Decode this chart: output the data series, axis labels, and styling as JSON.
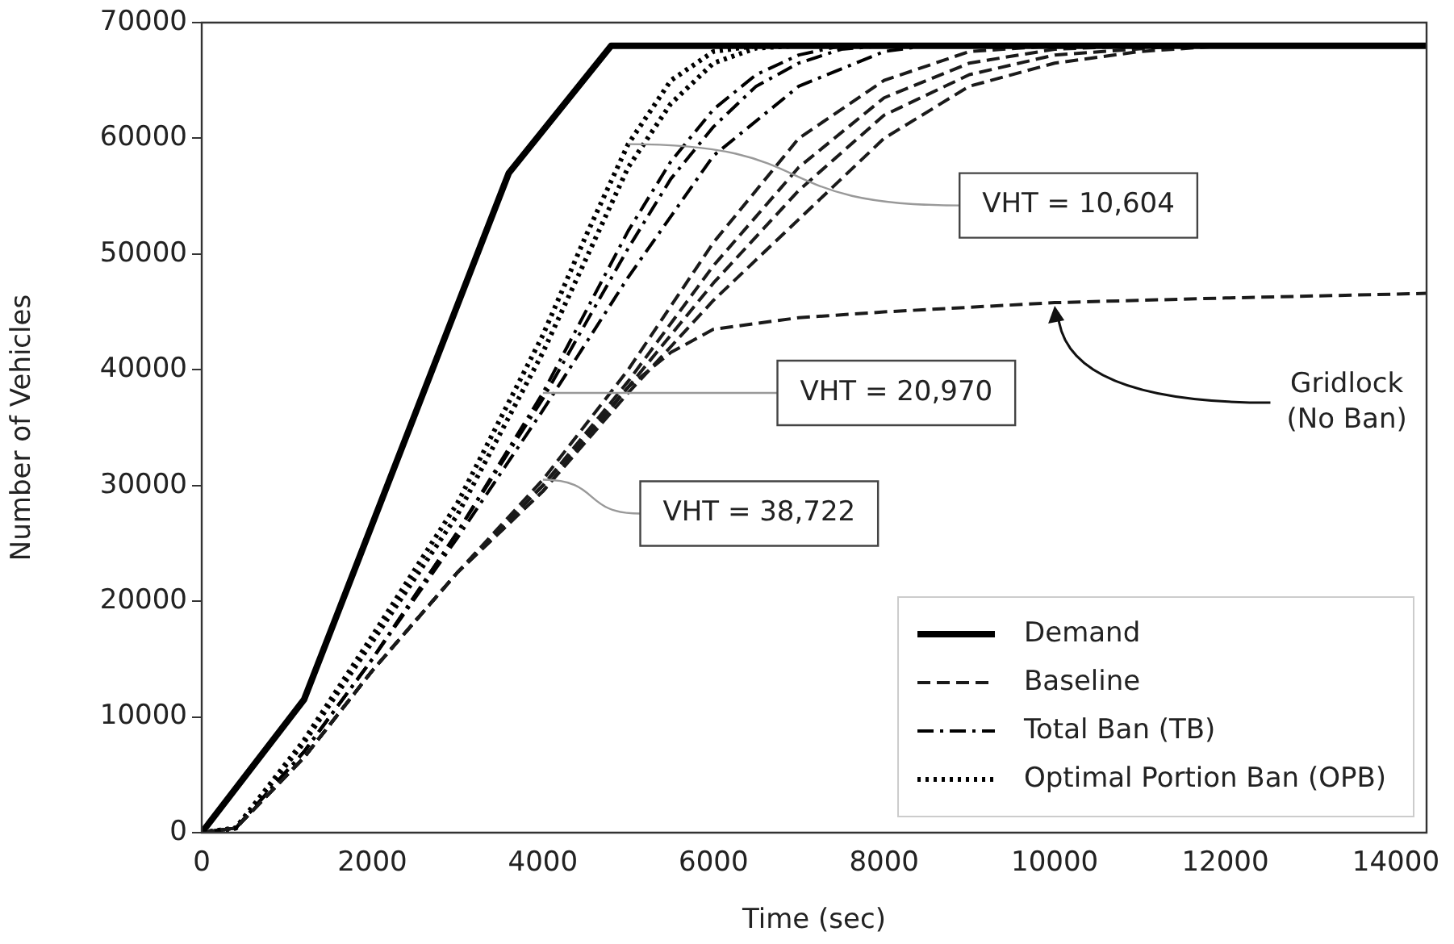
{
  "chart_data": {
    "type": "line",
    "xlabel": "Time (sec)",
    "ylabel": "Number of Vehicles",
    "xlim": [
      0,
      14360
    ],
    "ylim": [
      0,
      70000
    ],
    "xticks": [
      0,
      2000,
      4000,
      6000,
      8000,
      10000,
      12000,
      14000
    ],
    "yticks": [
      0,
      10000,
      20000,
      30000,
      40000,
      50000,
      60000,
      70000
    ],
    "grid": false,
    "legend": "bottom right",
    "marker": "none",
    "series": [
      {
        "name": "Demand",
        "color": "#000000",
        "line_style": "solid",
        "x": [
          0,
          1200,
          3600,
          4800,
          14360
        ],
        "values": [
          0,
          11500,
          57000,
          68000,
          68000
        ]
      },
      {
        "name": "Baseline",
        "color": "#1a1a1a",
        "line_style": "dashed",
        "x": [
          0,
          400,
          1200,
          2000,
          3000,
          4000,
          5000,
          6000,
          7000,
          8000,
          9000,
          10000
        ],
        "values": [
          0,
          400,
          6500,
          14000,
          22500,
          30500,
          40000,
          51000,
          60000,
          65000,
          67500,
          68000
        ]
      },
      {
        "color": "#1a1a1a",
        "line_style": "dashed",
        "x": [
          0,
          400,
          1200,
          2000,
          3000,
          4000,
          5000,
          6000,
          7000,
          8000,
          9000,
          10000,
          11000
        ],
        "values": [
          0,
          400,
          6500,
          14000,
          22500,
          30000,
          39000,
          49000,
          57500,
          63500,
          66500,
          67700,
          68000
        ]
      },
      {
        "color": "#1a1a1a",
        "line_style": "dashed",
        "x": [
          0,
          400,
          1200,
          2000,
          3000,
          4000,
          5000,
          6000,
          7000,
          8000,
          9000,
          10000,
          11500
        ],
        "values": [
          0,
          400,
          6500,
          14000,
          22500,
          30000,
          38500,
          47500,
          55500,
          62000,
          65500,
          67200,
          68000
        ]
      },
      {
        "color": "#1a1a1a",
        "line_style": "dashed",
        "x": [
          0,
          400,
          1200,
          2000,
          3000,
          4000,
          5000,
          6000,
          7000,
          8000,
          9000,
          10000,
          11000,
          12000
        ],
        "values": [
          0,
          400,
          6500,
          14000,
          22500,
          29500,
          38000,
          46000,
          53000,
          60000,
          64500,
          66500,
          67500,
          68000
        ]
      },
      {
        "color": "#1a1a1a",
        "line_style": "dashed",
        "x": [
          0,
          400,
          1200,
          2000,
          3000,
          4000,
          5000,
          5500,
          6000,
          7000,
          8000,
          10000,
          12000,
          14360
        ],
        "values": [
          0,
          400,
          6500,
          14000,
          22500,
          29500,
          38500,
          41500,
          43500,
          44500,
          45000,
          45800,
          46200,
          46600
        ]
      },
      {
        "name": "Total Ban (TB)",
        "color": "#000000",
        "line_style": "dashdot",
        "x": [
          0,
          400,
          1200,
          2000,
          3000,
          4000,
          5000,
          5500,
          6000,
          6500,
          7000,
          7500
        ],
        "values": [
          0,
          400,
          7000,
          15000,
          26000,
          38000,
          52000,
          58000,
          62500,
          65500,
          67200,
          68000
        ]
      },
      {
        "color": "#000000",
        "line_style": "dashdot",
        "x": [
          0,
          400,
          1200,
          2000,
          3000,
          4000,
          5000,
          5500,
          6000,
          6500,
          7000,
          7500,
          8000
        ],
        "values": [
          0,
          400,
          7000,
          15000,
          26000,
          37500,
          50500,
          56500,
          61000,
          64500,
          66500,
          67700,
          68000
        ]
      },
      {
        "color": "#000000",
        "line_style": "dashdot",
        "x": [
          0,
          400,
          1200,
          2000,
          3000,
          4000,
          5000,
          6000,
          7000,
          8000,
          8500
        ],
        "values": [
          0,
          400,
          7000,
          15000,
          25500,
          36500,
          48000,
          58500,
          64500,
          67500,
          68000
        ]
      },
      {
        "name": "Optimal Portion Ban (OPB)",
        "color": "#000000",
        "line_style": "dotted",
        "x": [
          0,
          400,
          1200,
          2000,
          3000,
          4000,
          4500,
          5000,
          5500,
          6000,
          6500
        ],
        "values": [
          0,
          400,
          8000,
          17000,
          28500,
          43000,
          51500,
          59500,
          65000,
          67500,
          68000
        ]
      },
      {
        "color": "#000000",
        "line_style": "dotted",
        "x": [
          0,
          400,
          1200,
          2000,
          3000,
          4000,
          4500,
          5000,
          5500,
          6000,
          6500,
          7000
        ],
        "values": [
          0,
          400,
          7800,
          16500,
          27500,
          41500,
          49500,
          57500,
          63000,
          66500,
          67800,
          68000
        ]
      }
    ],
    "annotations": [
      {
        "text": "VHT = 10,604",
        "x": 5000,
        "y": 59500
      },
      {
        "text": "VHT = 20,970",
        "x": 4000,
        "y": 38000
      },
      {
        "text": "VHT = 38,722",
        "x": 4000,
        "y": 30500
      },
      {
        "text": "Gridlock\n(No Ban)",
        "x": 10000,
        "y": 45800
      }
    ]
  }
}
